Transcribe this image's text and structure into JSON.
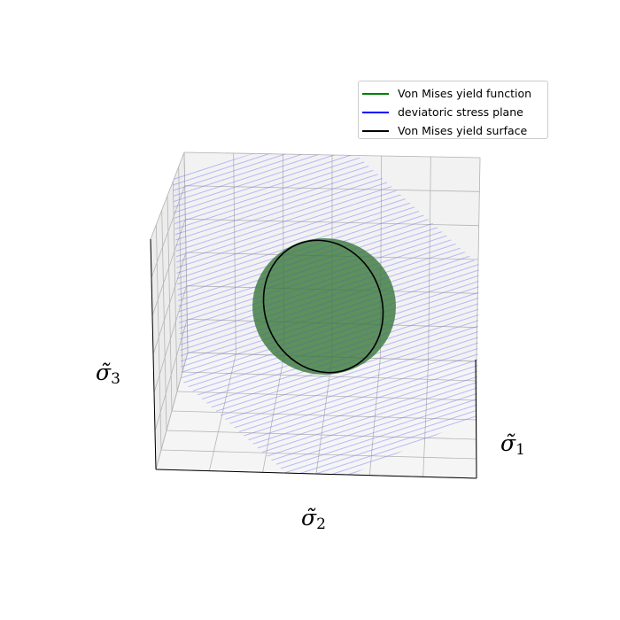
{
  "chart_data": {
    "type": "surface3d",
    "axes": {
      "x": {
        "symbol": "σ̃",
        "subscript": "1"
      },
      "y": {
        "symbol": "σ̃",
        "subscript": "2"
      },
      "z": {
        "symbol": "σ̃",
        "subscript": "3"
      }
    },
    "grid": true,
    "legend_placement": "top-right",
    "series": [
      {
        "name": "Von Mises yield function",
        "color": "#008000",
        "kind": "sphere"
      },
      {
        "name": "deviatoric stress plane",
        "color": "#0000ff",
        "kind": "plane"
      },
      {
        "name": "Von Mises yield surface",
        "color": "#000000",
        "kind": "intersection-curve"
      }
    ]
  }
}
